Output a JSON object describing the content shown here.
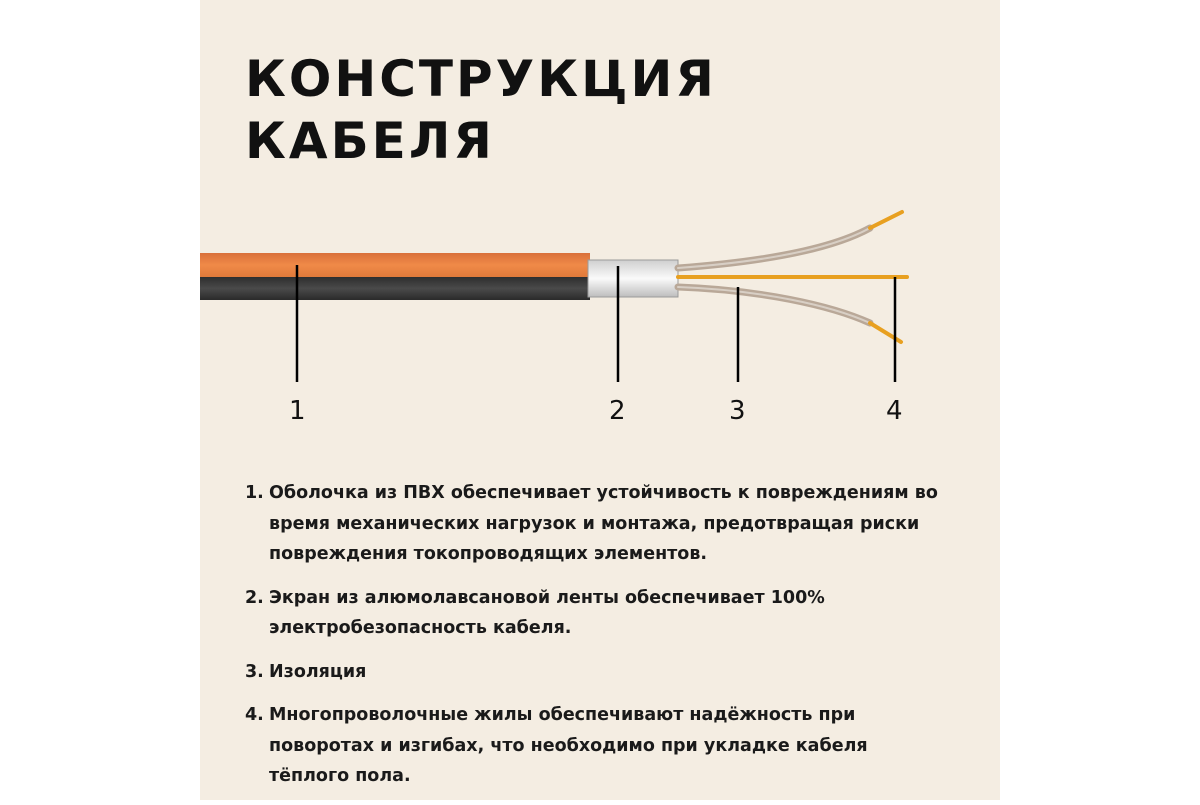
{
  "title": {
    "line1": "КОНСТРУКЦИЯ",
    "line2": "КАБЕЛЯ"
  },
  "callouts": [
    "1",
    "2",
    "3",
    "4"
  ],
  "colors": {
    "background": "#f4ede2",
    "sheath_orange": "#e98040",
    "sheath_dark": "#3c3c3c",
    "conductor": "#e8a020"
  },
  "items": [
    {
      "num": "1.",
      "text": "Оболочка из ПВХ обеспечивает устойчивость к повреждениям во время механических нагрузок и монтажа, предотвращая риски повреждения токопроводящих элементов."
    },
    {
      "num": "2.",
      "text": "Экран из алюмолавсановой ленты обеспечивает 100% электробезопасность кабеля."
    },
    {
      "num": "3.",
      "text": "Изоляция"
    },
    {
      "num": "4.",
      "text": "Многопроволочные жилы обеспечивают надёжность при поворотах и изгибах, что необходимо при укладке кабеля тёплого пола."
    }
  ]
}
